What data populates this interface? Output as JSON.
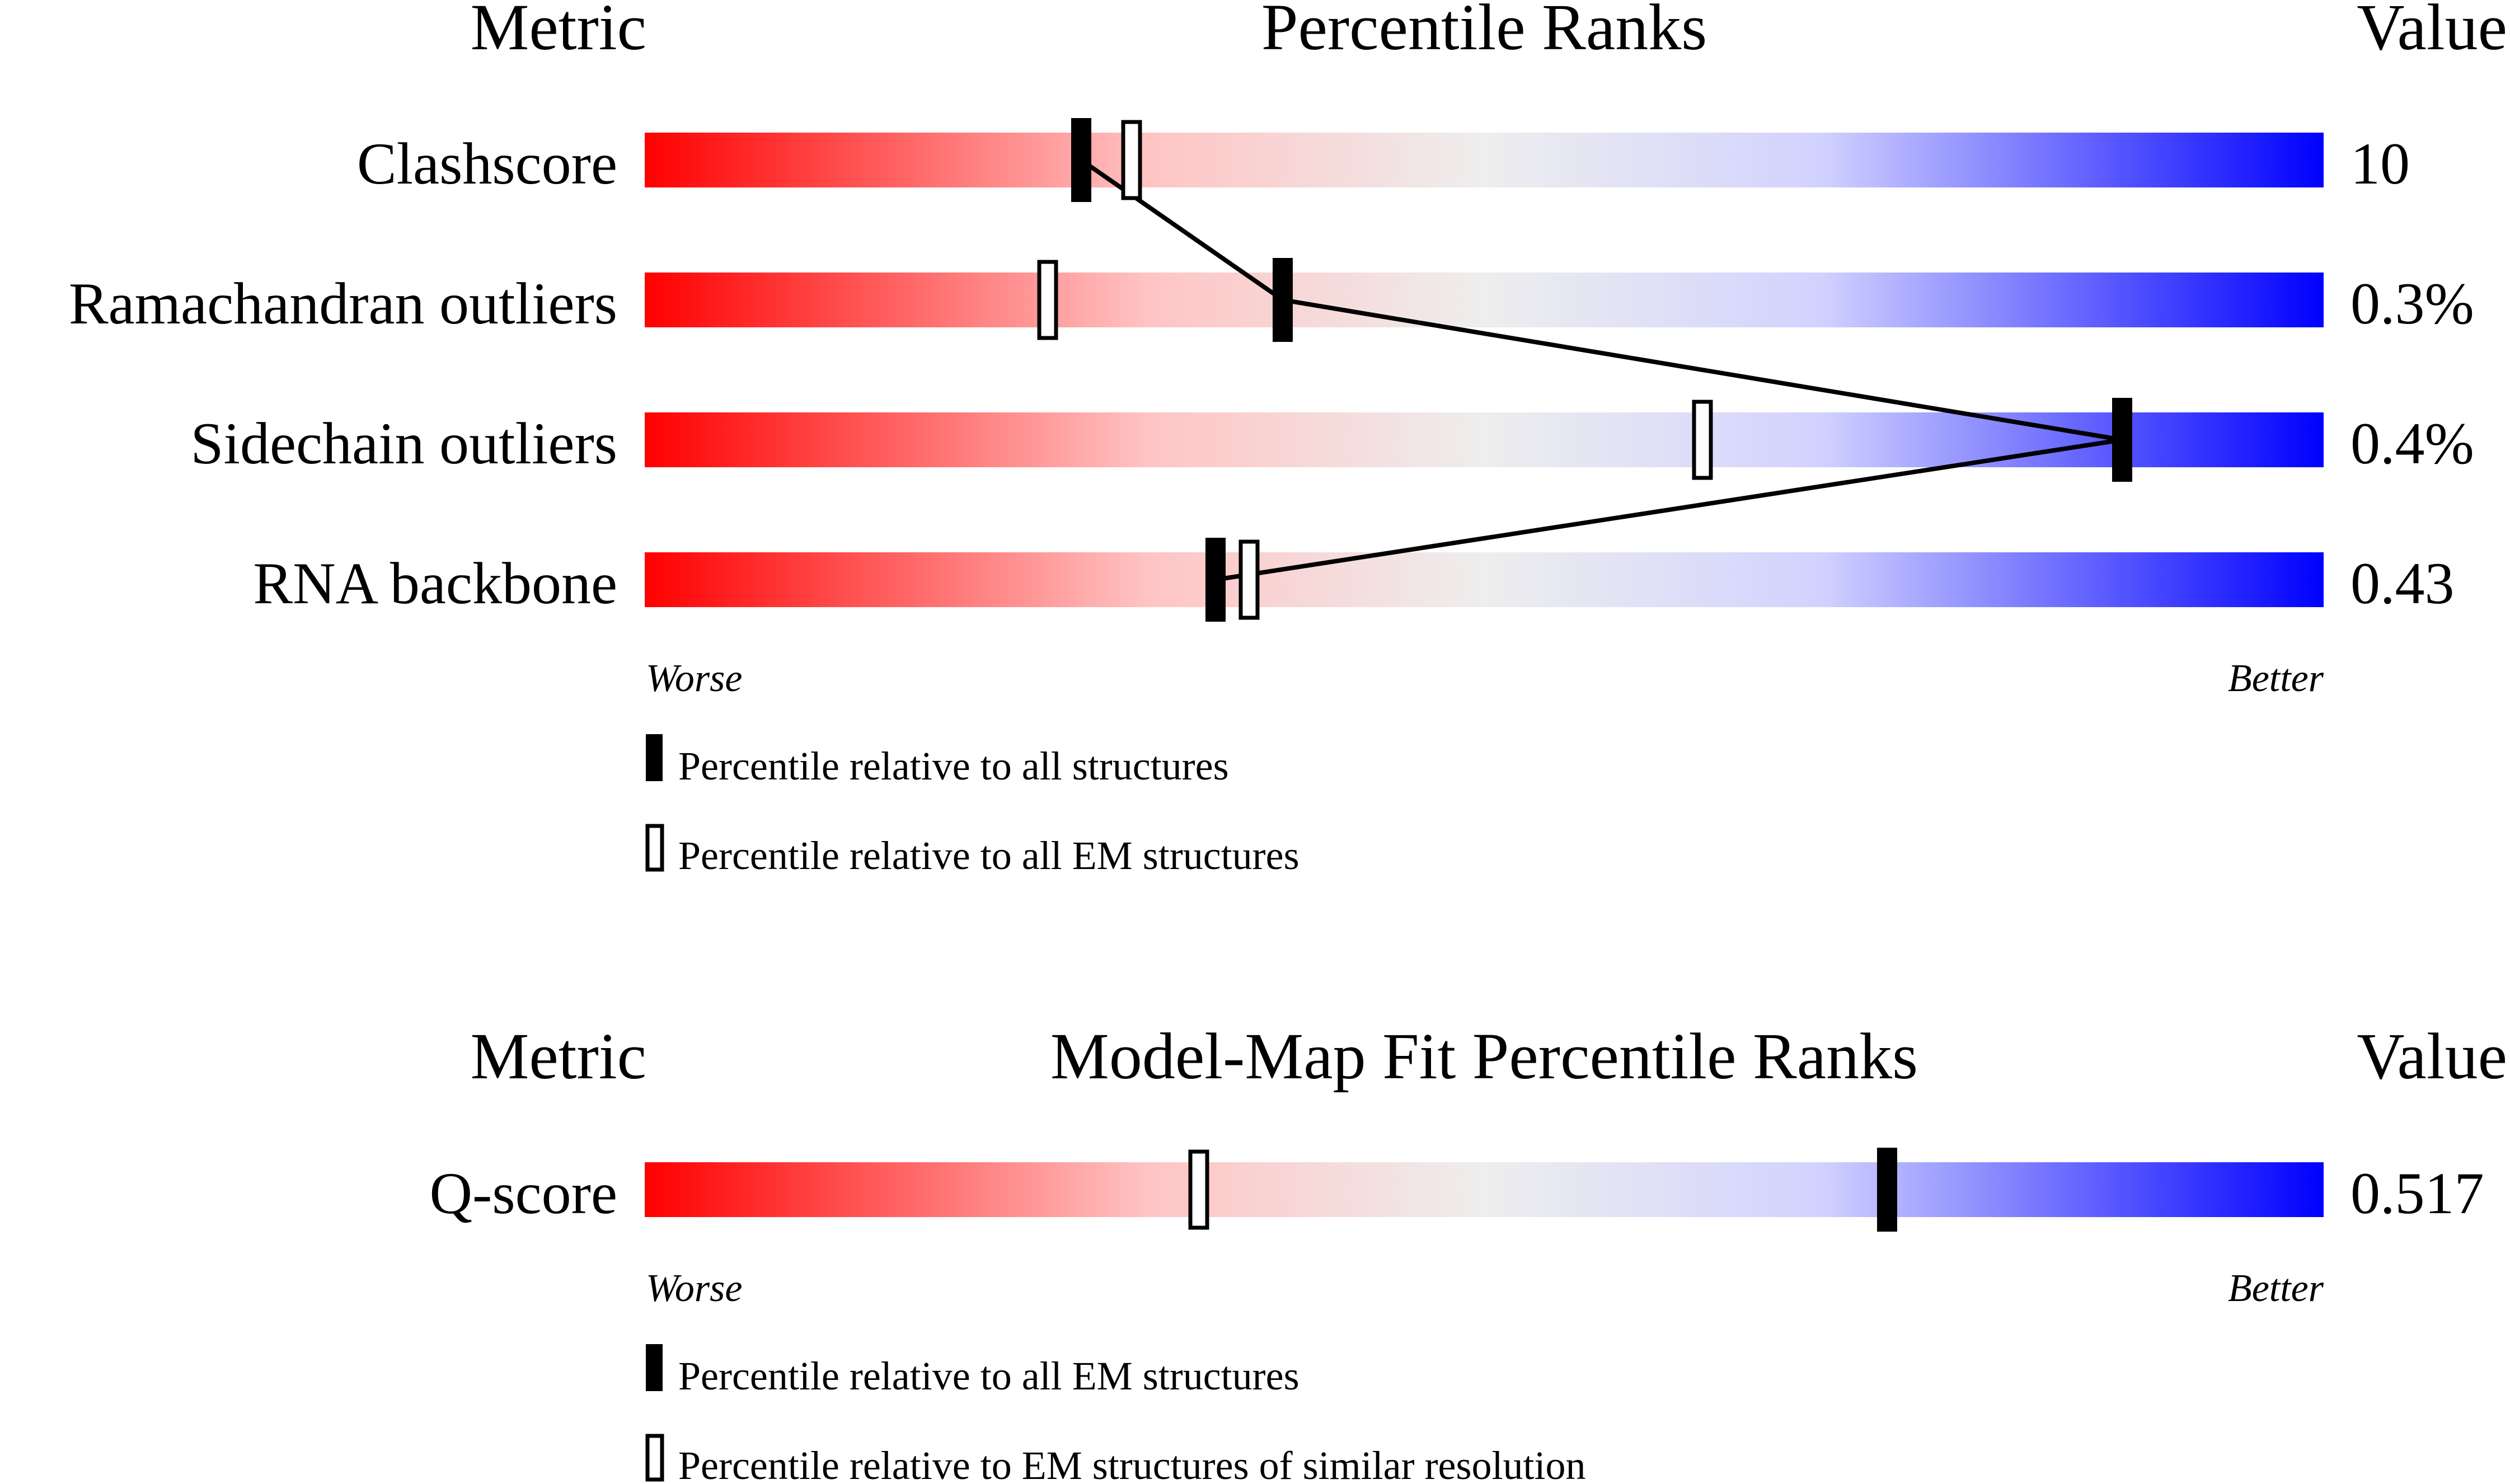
{
  "chart_data": [
    {
      "type": "bar",
      "headers": {
        "metric": "Metric",
        "title": "Percentile Ranks",
        "value": "Value"
      },
      "axis": {
        "worse": "Worse",
        "better": "Better"
      },
      "xlim": [
        0,
        100
      ],
      "rows": [
        {
          "label": "Clashscore",
          "value": "10",
          "all": 26,
          "em": 29
        },
        {
          "label": "Ramachandran outliers",
          "value": "0.3%",
          "all": 38,
          "em": 24
        },
        {
          "label": "Sidechain outliers",
          "value": "0.4%",
          "all": 88,
          "em": 63
        },
        {
          "label": "RNA backbone",
          "value": "0.43",
          "all": 34,
          "em": 36
        }
      ],
      "legend": {
        "filled": "Percentile relative to all structures",
        "hollow": "Percentile relative to all EM structures"
      }
    },
    {
      "type": "bar",
      "headers": {
        "metric": "Metric",
        "title": "Model-Map Fit Percentile Ranks",
        "value": "Value"
      },
      "axis": {
        "worse": "Worse",
        "better": "Better"
      },
      "xlim": [
        0,
        100
      ],
      "rows": [
        {
          "label": "Q-score",
          "value": "0.517",
          "all": 74,
          "em": 33
        }
      ],
      "legend": {
        "filled": "Percentile relative to all EM structures",
        "hollow": "Percentile relative to EM structures of similar resolution"
      }
    }
  ]
}
